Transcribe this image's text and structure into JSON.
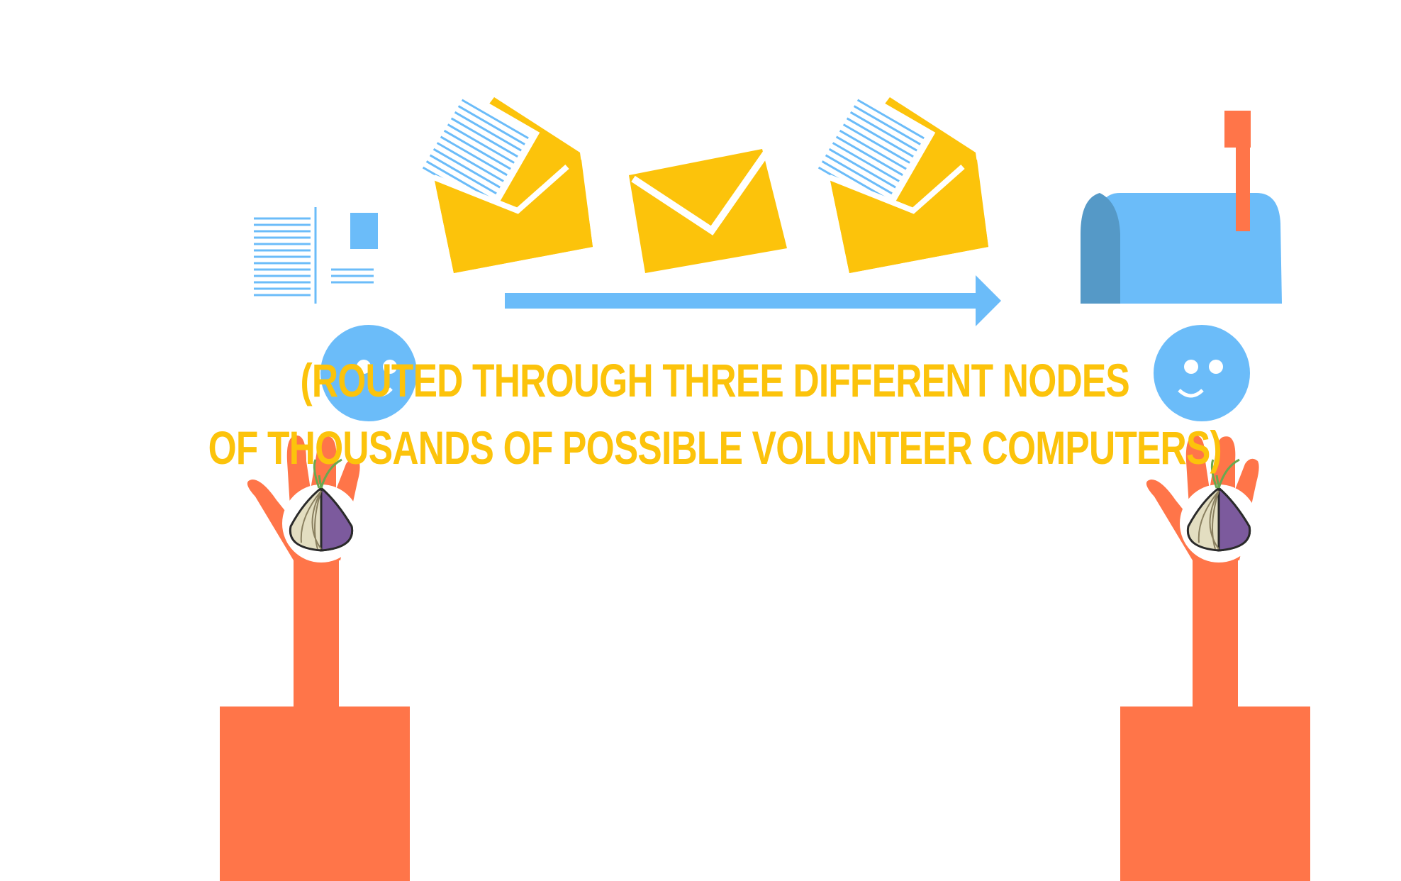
{
  "caption": {
    "line1": "(ROUTED THROUGH THREE DIFFERENT NODES",
    "line2": "OF THOUSANDS OF POSSIBLE VOLUNTEER COMPUTERS)"
  },
  "colors": {
    "caption": "#fcc30b",
    "envelope": "#fcc30b",
    "paper_lines": "#6bbcf9",
    "arrow": "#6bbcf9",
    "face": "#6bbcf9",
    "mailbox": "#6bbcf9",
    "mailbox_shadow": "#5599c7",
    "flag": "#ff7549",
    "arm": "#ff7549",
    "onion_bulb": "#e3dec1",
    "onion_purple": "#7c5a9d",
    "onion_leaf": "#6aa84f"
  },
  "icons": {
    "letter": "letter-icon",
    "envelope_open": "open-envelope-icon",
    "envelope_closed": "closed-envelope-icon",
    "arrow": "arrow-right-icon",
    "mailbox": "mailbox-icon",
    "sender": "smiley-face-icon",
    "receiver": "smiley-face-icon",
    "tor": "tor-onion-icon"
  }
}
